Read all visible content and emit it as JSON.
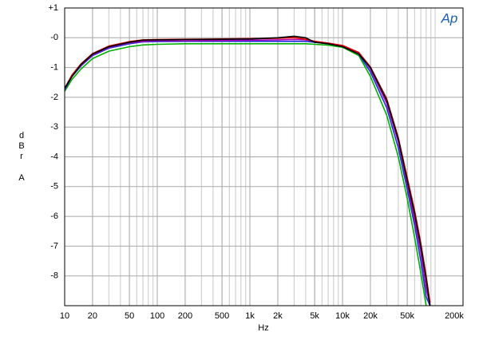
{
  "chart_data": {
    "type": "line",
    "logo": "Ap",
    "xlabel": "Hz",
    "ylabel": "dBr A",
    "xlog": true,
    "grid": true,
    "xlim": [
      10,
      200000
    ],
    "ylim": [
      -9,
      1
    ],
    "xticks": [
      10,
      20,
      50,
      100,
      200,
      500,
      {
        "value": 1000,
        "label": "1k"
      },
      {
        "value": 2000,
        "label": "2k"
      },
      {
        "value": 5000,
        "label": "5k"
      },
      {
        "value": 10000,
        "label": "10k"
      },
      {
        "value": 20000,
        "label": "20k"
      },
      {
        "value": 50000,
        "label": "50k"
      },
      {
        "value": 200000,
        "label": "200k"
      }
    ],
    "yticks": [
      {
        "value": 1,
        "label": "+1"
      },
      {
        "value": 0,
        "label": "-0"
      },
      -1,
      -2,
      -3,
      -4,
      -5,
      -6,
      -7,
      -8
    ],
    "x": [
      10,
      12,
      15,
      20,
      30,
      50,
      70,
      100,
      200,
      500,
      1000,
      2000,
      3000,
      4000,
      5000,
      7000,
      10000,
      15000,
      20000,
      30000,
      40000,
      50000,
      60000,
      70000,
      80000,
      88000
    ],
    "series": [
      {
        "color": "#00b000",
        "values": [
          -1.8,
          -1.4,
          -1.05,
          -0.7,
          -0.45,
          -0.3,
          -0.24,
          -0.22,
          -0.2,
          -0.2,
          -0.2,
          -0.2,
          -0.2,
          -0.2,
          -0.22,
          -0.25,
          -0.32,
          -0.6,
          -1.3,
          -2.6,
          -4.0,
          -5.4,
          -6.7,
          -7.9,
          -9.0,
          null
        ]
      },
      {
        "color": "#2030e0",
        "values": [
          -1.75,
          -1.3,
          -0.95,
          -0.6,
          -0.35,
          -0.2,
          -0.14,
          -0.13,
          -0.12,
          -0.12,
          -0.12,
          -0.12,
          -0.12,
          -0.12,
          -0.15,
          -0.2,
          -0.28,
          -0.55,
          -1.15,
          -2.35,
          -3.7,
          -5.1,
          -6.3,
          -7.5,
          -8.7,
          -9.0
        ]
      },
      {
        "color": "#b000b0",
        "values": [
          -1.72,
          -1.28,
          -0.92,
          -0.57,
          -0.32,
          -0.17,
          -0.12,
          -0.1,
          -0.1,
          -0.09,
          -0.08,
          -0.07,
          -0.06,
          -0.07,
          -0.12,
          -0.18,
          -0.26,
          -0.5,
          -1.05,
          -2.2,
          -3.5,
          -4.9,
          -6.1,
          -7.2,
          -8.4,
          -9.0
        ]
      },
      {
        "color": "#e00000",
        "values": [
          -1.7,
          -1.25,
          -0.88,
          -0.53,
          -0.28,
          -0.13,
          -0.07,
          -0.06,
          -0.05,
          -0.04,
          -0.03,
          -0.02,
          0.0,
          -0.05,
          -0.12,
          -0.18,
          -0.26,
          -0.5,
          -0.98,
          -2.05,
          -3.35,
          -4.7,
          -5.8,
          -6.9,
          -8.0,
          -8.9
        ]
      },
      {
        "color": "#000000",
        "values": [
          -1.7,
          -1.3,
          -0.9,
          -0.55,
          -0.3,
          -0.15,
          -0.08,
          -0.07,
          -0.06,
          -0.05,
          -0.04,
          0.0,
          0.05,
          0.0,
          -0.15,
          -0.2,
          -0.3,
          -0.55,
          -1.0,
          -2.1,
          -3.4,
          -4.8,
          -5.9,
          -7.0,
          -8.1,
          -9.0
        ]
      }
    ]
  }
}
